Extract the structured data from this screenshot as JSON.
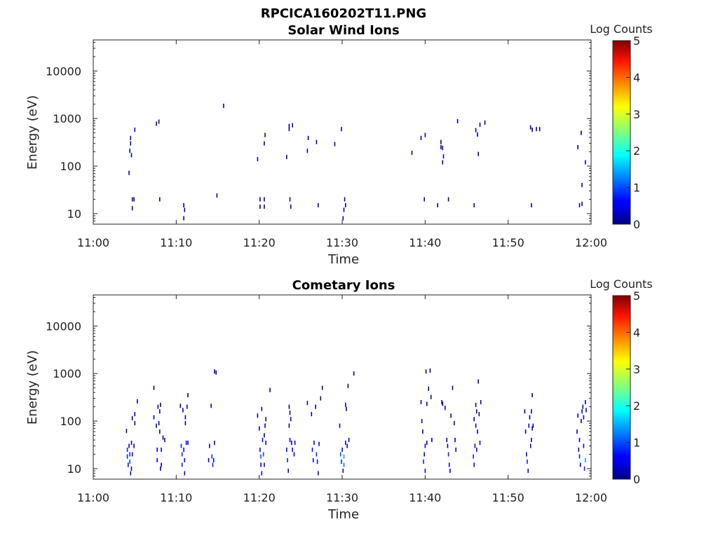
{
  "figure_title": "RPCICA160202T11.PNG",
  "chart_data": [
    {
      "type": "heatmap",
      "title": "Solar Wind Ions",
      "xlabel": "Time",
      "ylabel": "Energy (eV)",
      "x_ticks": [
        "11:00",
        "11:10",
        "11:20",
        "11:30",
        "11:40",
        "11:50",
        "12:00"
      ],
      "x_range_min": [
        0,
        60
      ],
      "y_scale": "log",
      "y_ticks": [
        "10",
        "100",
        "1000",
        "10000"
      ],
      "ylim": [
        6,
        45000
      ],
      "colorbar": {
        "label": "Log Counts",
        "ticks": [
          "0",
          "1",
          "2",
          "3",
          "4",
          "5"
        ],
        "range": [
          0,
          5
        ],
        "colormap": "jet"
      },
      "cells": [
        [
          4.3,
          72,
          0.2
        ],
        [
          4.4,
          210,
          0.2
        ],
        [
          4.5,
          300,
          0.2
        ],
        [
          4.5,
          390,
          0.2
        ],
        [
          4.6,
          170,
          0.2
        ],
        [
          4.7,
          20,
          0.2
        ],
        [
          4.7,
          13,
          0.2
        ],
        [
          4.9,
          20,
          0.2
        ],
        [
          5.0,
          580,
          0.2
        ],
        [
          7.6,
          780,
          0.2
        ],
        [
          7.9,
          860,
          0.2
        ],
        [
          8.0,
          20,
          0.2
        ],
        [
          10.9,
          15,
          0.2
        ],
        [
          10.9,
          8,
          0.2
        ],
        [
          11.0,
          12,
          0.2
        ],
        [
          14.9,
          24,
          0.2
        ],
        [
          15.7,
          1850,
          0.2
        ],
        [
          19.8,
          140,
          0.2
        ],
        [
          20.1,
          20,
          0.2
        ],
        [
          20.1,
          14,
          0.2
        ],
        [
          20.6,
          20,
          0.2
        ],
        [
          20.6,
          14,
          0.2
        ],
        [
          20.7,
          450,
          0.2
        ],
        [
          20.6,
          300,
          0.2
        ],
        [
          23.3,
          155,
          0.2
        ],
        [
          23.6,
          700,
          0.2
        ],
        [
          23.6,
          600,
          0.2
        ],
        [
          23.7,
          20,
          0.2
        ],
        [
          23.8,
          14,
          0.2
        ],
        [
          24.0,
          720,
          0.2
        ],
        [
          25.9,
          390,
          0.2
        ],
        [
          25.8,
          210,
          0.2
        ],
        [
          26.9,
          320,
          0.2
        ],
        [
          27.1,
          15,
          0.2
        ],
        [
          29.1,
          290,
          0.2
        ],
        [
          29.9,
          600,
          0.2
        ],
        [
          30.1,
          8,
          0.2
        ],
        [
          30.2,
          12,
          0.2
        ],
        [
          30.3,
          20,
          0.2
        ],
        [
          30.4,
          15,
          0.2
        ],
        [
          38.4,
          190,
          0.2
        ],
        [
          39.5,
          390,
          0.2
        ],
        [
          39.9,
          20,
          0.2
        ],
        [
          40.0,
          450,
          0.2
        ],
        [
          41.5,
          15,
          0.2
        ],
        [
          41.9,
          320,
          0.2
        ],
        [
          41.9,
          250,
          0.2
        ],
        [
          42.1,
          240,
          0.2
        ],
        [
          42.2,
          160,
          0.2
        ],
        [
          42.1,
          120,
          0.2
        ],
        [
          42.8,
          20,
          0.2
        ],
        [
          43.9,
          880,
          0.2
        ],
        [
          45.9,
          15,
          0.2
        ],
        [
          46.1,
          570,
          0.2
        ],
        [
          46.3,
          460,
          0.2
        ],
        [
          46.4,
          180,
          0.2
        ],
        [
          46.6,
          740,
          0.2
        ],
        [
          47.2,
          820,
          0.2
        ],
        [
          52.7,
          650,
          0.2
        ],
        [
          52.9,
          580,
          0.2
        ],
        [
          53.4,
          600,
          0.2
        ],
        [
          53.8,
          600,
          0.2
        ],
        [
          52.8,
          15,
          0.2
        ],
        [
          58.4,
          250,
          0.2
        ],
        [
          58.6,
          15,
          0.2
        ],
        [
          58.8,
          500,
          0.2
        ],
        [
          58.9,
          40,
          0.2
        ],
        [
          58.9,
          16,
          0.2
        ],
        [
          59.3,
          120,
          0.2
        ]
      ]
    },
    {
      "type": "heatmap",
      "title": "Cometary Ions",
      "xlabel": "Time",
      "ylabel": "Energy (eV)",
      "x_ticks": [
        "11:00",
        "11:10",
        "11:20",
        "11:30",
        "11:40",
        "11:50",
        "12:00"
      ],
      "x_range_min": [
        0,
        60
      ],
      "y_scale": "log",
      "y_ticks": [
        "10",
        "100",
        "1000",
        "10000"
      ],
      "ylim": [
        6,
        45000
      ],
      "colorbar": {
        "label": "Log Counts",
        "ticks": [
          "0",
          "1",
          "2",
          "3",
          "4",
          "5"
        ],
        "range": [
          0,
          5
        ],
        "colormap": "jet"
      },
      "cells": [
        [
          4.0,
          62,
          0.2
        ],
        [
          4.1,
          25,
          0.8
        ],
        [
          4.1,
          18,
          0.8
        ],
        [
          4.2,
          12,
          0.6
        ],
        [
          4.3,
          30,
          0.6
        ],
        [
          4.4,
          20,
          0.8
        ],
        [
          4.4,
          14,
          1.0
        ],
        [
          4.5,
          8,
          0.4
        ],
        [
          4.6,
          35,
          0.4
        ],
        [
          4.6,
          10,
          0.4
        ],
        [
          4.7,
          115,
          0.2
        ],
        [
          4.7,
          20,
          0.4
        ],
        [
          4.9,
          30,
          0.2
        ],
        [
          5.0,
          90,
          0.2
        ],
        [
          5.0,
          140,
          0.2
        ],
        [
          5.3,
          260,
          0.2
        ],
        [
          7.3,
          500,
          0.2
        ],
        [
          7.3,
          120,
          0.2
        ],
        [
          7.6,
          80,
          0.2
        ],
        [
          7.7,
          25,
          0.6
        ],
        [
          7.7,
          15,
          0.6
        ],
        [
          7.8,
          200,
          0.2
        ],
        [
          7.9,
          90,
          0.2
        ],
        [
          8.0,
          60,
          0.2
        ],
        [
          8.0,
          160,
          0.2
        ],
        [
          8.1,
          10,
          0.4
        ],
        [
          8.2,
          25,
          0.4
        ],
        [
          8.2,
          12,
          0.4
        ],
        [
          8.4,
          45,
          0.2
        ],
        [
          8.6,
          40,
          0.2
        ],
        [
          8.1,
          220,
          0.2
        ],
        [
          10.5,
          210,
          0.2
        ],
        [
          10.6,
          30,
          0.8
        ],
        [
          10.7,
          20,
          0.8
        ],
        [
          10.7,
          12,
          0.8
        ],
        [
          10.8,
          170,
          0.2
        ],
        [
          10.9,
          25,
          0.6
        ],
        [
          11.0,
          15,
          0.6
        ],
        [
          11.0,
          8,
          0.4
        ],
        [
          11.1,
          120,
          0.2
        ],
        [
          11.1,
          90,
          0.2
        ],
        [
          11.2,
          35,
          0.6
        ],
        [
          11.3,
          200,
          0.2
        ],
        [
          11.4,
          350,
          0.2
        ],
        [
          11.4,
          35,
          0.4
        ],
        [
          13.9,
          15,
          0.4
        ],
        [
          14.0,
          30,
          0.4
        ],
        [
          14.2,
          210,
          0.2
        ],
        [
          14.3,
          18,
          0.8
        ],
        [
          14.4,
          12,
          0.8
        ],
        [
          14.5,
          15,
          0.6
        ],
        [
          14.6,
          35,
          0.4
        ],
        [
          14.6,
          1100,
          0.2
        ],
        [
          14.8,
          1050,
          0.2
        ],
        [
          19.8,
          130,
          0.2
        ],
        [
          20.0,
          70,
          0.2
        ],
        [
          20.1,
          25,
          0.6
        ],
        [
          20.2,
          18,
          1.0
        ],
        [
          20.2,
          12,
          0.6
        ],
        [
          20.3,
          180,
          0.2
        ],
        [
          20.3,
          8,
          0.6
        ],
        [
          20.4,
          40,
          0.4
        ],
        [
          20.5,
          20,
          1.0
        ],
        [
          20.6,
          12,
          0.6
        ],
        [
          20.6,
          50,
          0.2
        ],
        [
          20.7,
          80,
          0.2
        ],
        [
          20.8,
          35,
          0.4
        ],
        [
          20.8,
          110,
          0.2
        ],
        [
          21.3,
          450,
          0.2
        ],
        [
          23.3,
          25,
          0.6
        ],
        [
          23.4,
          15,
          0.8
        ],
        [
          23.5,
          9,
          0.6
        ],
        [
          23.6,
          200,
          0.2
        ],
        [
          23.6,
          80,
          0.2
        ],
        [
          23.7,
          40,
          0.4
        ],
        [
          23.7,
          150,
          0.2
        ],
        [
          23.8,
          110,
          0.2
        ],
        [
          23.9,
          35,
          0.4
        ],
        [
          24.0,
          25,
          0.4
        ],
        [
          24.2,
          20,
          0.6
        ],
        [
          24.3,
          35,
          0.4
        ],
        [
          25.8,
          240,
          0.2
        ],
        [
          26.3,
          140,
          0.2
        ],
        [
          26.4,
          25,
          0.6
        ],
        [
          26.5,
          15,
          0.6
        ],
        [
          26.6,
          35,
          0.4
        ],
        [
          26.8,
          200,
          0.2
        ],
        [
          26.9,
          20,
          0.8
        ],
        [
          27.0,
          14,
          0.6
        ],
        [
          27.1,
          8,
          0.6
        ],
        [
          27.2,
          33,
          0.6
        ],
        [
          27.4,
          300,
          0.2
        ],
        [
          27.6,
          500,
          0.2
        ],
        [
          29.7,
          80,
          0.2
        ],
        [
          29.8,
          20,
          1.0
        ],
        [
          29.9,
          14,
          0.8
        ],
        [
          30.0,
          25,
          0.6
        ],
        [
          30.1,
          9,
          0.6
        ],
        [
          30.2,
          18,
          1.4
        ],
        [
          30.2,
          12,
          1.2
        ],
        [
          30.4,
          35,
          0.4
        ],
        [
          30.4,
          220,
          0.2
        ],
        [
          30.5,
          180,
          0.2
        ],
        [
          30.6,
          30,
          0.4
        ],
        [
          30.7,
          550,
          0.2
        ],
        [
          30.8,
          40,
          0.4
        ],
        [
          31.4,
          1000,
          0.2
        ],
        [
          39.5,
          250,
          0.2
        ],
        [
          39.6,
          100,
          0.2
        ],
        [
          39.7,
          60,
          0.2
        ],
        [
          39.8,
          14,
          0.8
        ],
        [
          39.9,
          20,
          0.6
        ],
        [
          40.0,
          30,
          0.4
        ],
        [
          40.0,
          9,
          0.6
        ],
        [
          40.1,
          1100,
          0.2
        ],
        [
          40.2,
          35,
          0.4
        ],
        [
          40.2,
          230,
          0.2
        ],
        [
          40.4,
          480,
          0.2
        ],
        [
          40.6,
          1150,
          0.2
        ],
        [
          40.7,
          320,
          0.2
        ],
        [
          40.8,
          40,
          0.2
        ],
        [
          42.0,
          250,
          0.2
        ],
        [
          42.1,
          230,
          0.2
        ],
        [
          42.4,
          190,
          0.2
        ],
        [
          42.6,
          40,
          0.2
        ],
        [
          42.7,
          30,
          0.4
        ],
        [
          42.8,
          20,
          0.8
        ],
        [
          42.9,
          12,
          0.6
        ],
        [
          43.0,
          9,
          0.4
        ],
        [
          43.1,
          130,
          0.2
        ],
        [
          43.3,
          500,
          0.2
        ],
        [
          43.5,
          90,
          0.2
        ],
        [
          43.6,
          40,
          0.2
        ],
        [
          43.7,
          25,
          0.4
        ],
        [
          45.8,
          18,
          0.8
        ],
        [
          45.9,
          12,
          0.6
        ],
        [
          45.9,
          110,
          0.2
        ],
        [
          46.0,
          30,
          0.4
        ],
        [
          46.1,
          80,
          0.2
        ],
        [
          46.1,
          220,
          0.2
        ],
        [
          46.2,
          25,
          0.6
        ],
        [
          46.2,
          160,
          0.2
        ],
        [
          46.3,
          60,
          0.2
        ],
        [
          46.4,
          680,
          0.2
        ],
        [
          46.5,
          140,
          0.2
        ],
        [
          46.6,
          35,
          0.4
        ],
        [
          46.7,
          250,
          0.2
        ],
        [
          52.0,
          160,
          0.2
        ],
        [
          52.1,
          60,
          0.4
        ],
        [
          52.2,
          20,
          0.6
        ],
        [
          52.3,
          14,
          0.8
        ],
        [
          52.4,
          9,
          0.6
        ],
        [
          52.5,
          80,
          0.4
        ],
        [
          52.6,
          120,
          0.2
        ],
        [
          52.7,
          30,
          0.4
        ],
        [
          52.8,
          40,
          0.2
        ],
        [
          52.8,
          160,
          0.2
        ],
        [
          52.9,
          70,
          0.4
        ],
        [
          53.0,
          80,
          0.4
        ],
        [
          52.9,
          350,
          0.2
        ],
        [
          58.3,
          60,
          0.2
        ],
        [
          58.4,
          130,
          0.4
        ],
        [
          58.5,
          25,
          0.6
        ],
        [
          58.6,
          40,
          0.4
        ],
        [
          58.6,
          18,
          0.8
        ],
        [
          58.7,
          12,
          0.6
        ],
        [
          58.8,
          100,
          0.2
        ],
        [
          58.9,
          160,
          0.4
        ],
        [
          59.0,
          200,
          0.2
        ],
        [
          59.1,
          30,
          0.6
        ],
        [
          59.1,
          120,
          0.6
        ],
        [
          59.2,
          10,
          0.8
        ],
        [
          59.3,
          15,
          1.4
        ],
        [
          59.3,
          250,
          0.2
        ],
        [
          59.4,
          170,
          0.4
        ]
      ]
    }
  ]
}
